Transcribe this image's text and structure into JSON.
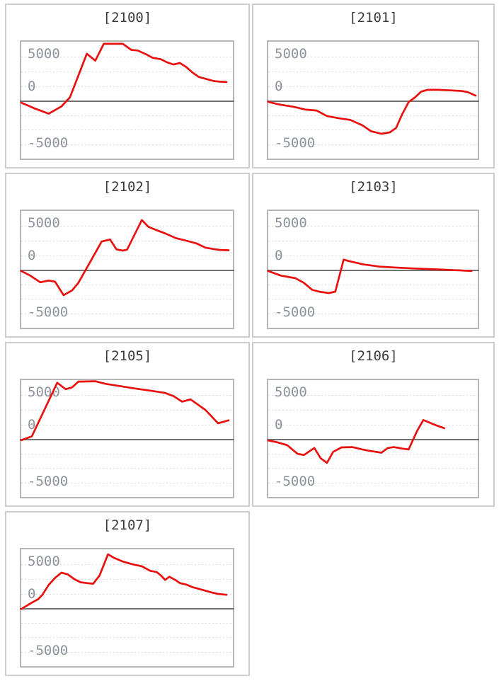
{
  "axis": {
    "tick_labels": [
      "5000",
      "0",
      "-5000"
    ],
    "tick_values": [
      5000,
      0,
      -5000
    ],
    "grid_values": [
      7500,
      5000,
      2500,
      -2500,
      -5000,
      -7500
    ],
    "grid_step": 2500,
    "ylim": [
      -9900,
      10150
    ],
    "label_center_values": [
      7970,
      2390,
      -7260
    ],
    "grid_style": "dashed",
    "legend": "none"
  },
  "colors": {
    "line_red": "#e8100e",
    "zero_line": "#717171",
    "gridline": "#d9d9d9",
    "plot_border": "#b5b5b5",
    "panel_border": "#cdcdcd",
    "tick_label": "#8d939c",
    "title_text": "#3c3c3c",
    "background": "#ffffff"
  },
  "chart_data": [
    {
      "id": "2100",
      "title": "[2100]",
      "type": "line",
      "row": 0,
      "col": 0,
      "xlabel": "",
      "ylabel": "",
      "points": [
        [
          0,
          -300
        ],
        [
          6,
          -1250
        ],
        [
          13,
          -2200
        ],
        [
          19,
          -950
        ],
        [
          23,
          600
        ],
        [
          31,
          8100
        ],
        [
          35,
          6900
        ],
        [
          39,
          9800
        ],
        [
          48,
          9800
        ],
        [
          52,
          8750
        ],
        [
          55,
          8650
        ],
        [
          59,
          8000
        ],
        [
          62,
          7400
        ],
        [
          66,
          7150
        ],
        [
          69,
          6600
        ],
        [
          72,
          6250
        ],
        [
          75,
          6500
        ],
        [
          78,
          5800
        ],
        [
          81,
          4850
        ],
        [
          84,
          4100
        ],
        [
          88,
          3700
        ],
        [
          91,
          3400
        ],
        [
          94,
          3300
        ],
        [
          97,
          3250
        ]
      ]
    },
    {
      "id": "2101",
      "title": "[2101]",
      "type": "line",
      "row": 0,
      "col": 1,
      "xlabel": "",
      "ylabel": "",
      "points": [
        [
          0,
          -150
        ],
        [
          5,
          -600
        ],
        [
          12,
          -1000
        ],
        [
          18,
          -1500
        ],
        [
          23,
          -1650
        ],
        [
          28,
          -2600
        ],
        [
          34,
          -3000
        ],
        [
          39,
          -3250
        ],
        [
          45,
          -4200
        ],
        [
          49,
          -5200
        ],
        [
          54,
          -5650
        ],
        [
          58,
          -5400
        ],
        [
          61,
          -4650
        ],
        [
          64,
          -2250
        ],
        [
          67,
          -200
        ],
        [
          70,
          600
        ],
        [
          73,
          1600
        ],
        [
          76,
          1900
        ],
        [
          81,
          1900
        ],
        [
          87,
          1800
        ],
        [
          92,
          1700
        ],
        [
          95,
          1550
        ],
        [
          99,
          900
        ]
      ]
    },
    {
      "id": "2102",
      "title": "[2102]",
      "type": "line",
      "row": 1,
      "col": 0,
      "xlabel": "",
      "ylabel": "",
      "points": [
        [
          0,
          -150
        ],
        [
          4,
          -900
        ],
        [
          9,
          -2100
        ],
        [
          13,
          -1800
        ],
        [
          16,
          -2000
        ],
        [
          20,
          -4300
        ],
        [
          24,
          -3500
        ],
        [
          27,
          -2200
        ],
        [
          38,
          4900
        ],
        [
          42,
          5250
        ],
        [
          45,
          3550
        ],
        [
          48,
          3350
        ],
        [
          50,
          3500
        ],
        [
          57,
          8600
        ],
        [
          60,
          7450
        ],
        [
          64,
          6850
        ],
        [
          68,
          6300
        ],
        [
          73,
          5500
        ],
        [
          78,
          5050
        ],
        [
          83,
          4550
        ],
        [
          87,
          3850
        ],
        [
          91,
          3600
        ],
        [
          94,
          3450
        ],
        [
          98,
          3400
        ]
      ]
    },
    {
      "id": "2103",
      "title": "[2103]",
      "type": "line",
      "row": 1,
      "col": 1,
      "xlabel": "",
      "ylabel": "",
      "points": [
        [
          0,
          -150
        ],
        [
          6,
          -950
        ],
        [
          13,
          -1400
        ],
        [
          17,
          -2200
        ],
        [
          21,
          -3400
        ],
        [
          25,
          -3750
        ],
        [
          29,
          -3950
        ],
        [
          32,
          -3700
        ],
        [
          36,
          1800
        ],
        [
          38,
          1600
        ],
        [
          45,
          1000
        ],
        [
          53,
          600
        ],
        [
          60,
          450
        ],
        [
          69,
          280
        ],
        [
          80,
          120
        ],
        [
          91,
          -50
        ],
        [
          97,
          -150
        ]
      ]
    },
    {
      "id": "2105",
      "title": "[2105]",
      "type": "line",
      "row": 2,
      "col": 0,
      "xlabel": "",
      "ylabel": "",
      "points": [
        [
          0,
          -150
        ],
        [
          5,
          500
        ],
        [
          17,
          9700
        ],
        [
          21,
          8600
        ],
        [
          24,
          8900
        ],
        [
          27,
          9900
        ],
        [
          35,
          9950
        ],
        [
          40,
          9500
        ],
        [
          47,
          9100
        ],
        [
          54,
          8700
        ],
        [
          61,
          8350
        ],
        [
          68,
          7950
        ],
        [
          72,
          7400
        ],
        [
          76,
          6450
        ],
        [
          80,
          6850
        ],
        [
          87,
          5050
        ],
        [
          93,
          2750
        ],
        [
          98,
          3250
        ]
      ]
    },
    {
      "id": "2106",
      "title": "[2106]",
      "type": "line",
      "row": 2,
      "col": 1,
      "xlabel": "",
      "ylabel": "",
      "points": [
        [
          0,
          -200
        ],
        [
          4,
          -500
        ],
        [
          9,
          -1000
        ],
        [
          14,
          -2500
        ],
        [
          17,
          -2700
        ],
        [
          22,
          -1500
        ],
        [
          25,
          -3250
        ],
        [
          28,
          -4050
        ],
        [
          31,
          -2150
        ],
        [
          35,
          -1400
        ],
        [
          40,
          -1350
        ],
        [
          47,
          -1900
        ],
        [
          54,
          -2300
        ],
        [
          57,
          -1500
        ],
        [
          60,
          -1350
        ],
        [
          64,
          -1600
        ],
        [
          67,
          -1750
        ],
        [
          71,
          1400
        ],
        [
          74,
          3300
        ],
        [
          76,
          3000
        ],
        [
          79,
          2550
        ],
        [
          82,
          2150
        ],
        [
          84,
          1900
        ]
      ]
    },
    {
      "id": "2107",
      "title": "[2107]",
      "type": "line",
      "row": 3,
      "col": 0,
      "xlabel": "",
      "ylabel": "",
      "points": [
        [
          0,
          -100
        ],
        [
          5,
          1000
        ],
        [
          8,
          1600
        ],
        [
          10,
          2350
        ],
        [
          13,
          4050
        ],
        [
          16,
          5250
        ],
        [
          19,
          6150
        ],
        [
          22,
          5850
        ],
        [
          25,
          5050
        ],
        [
          28,
          4500
        ],
        [
          31,
          4350
        ],
        [
          34,
          4250
        ],
        [
          37,
          5650
        ],
        [
          41,
          9300
        ],
        [
          44,
          8650
        ],
        [
          48,
          8050
        ],
        [
          53,
          7550
        ],
        [
          57,
          7250
        ],
        [
          61,
          6450
        ],
        [
          64,
          6250
        ],
        [
          66,
          5650
        ],
        [
          68,
          4900
        ],
        [
          70,
          5450
        ],
        [
          73,
          4850
        ],
        [
          75,
          4350
        ],
        [
          78,
          4100
        ],
        [
          81,
          3650
        ],
        [
          86,
          3150
        ],
        [
          90,
          2750
        ],
        [
          93,
          2500
        ],
        [
          97,
          2350
        ]
      ]
    }
  ]
}
